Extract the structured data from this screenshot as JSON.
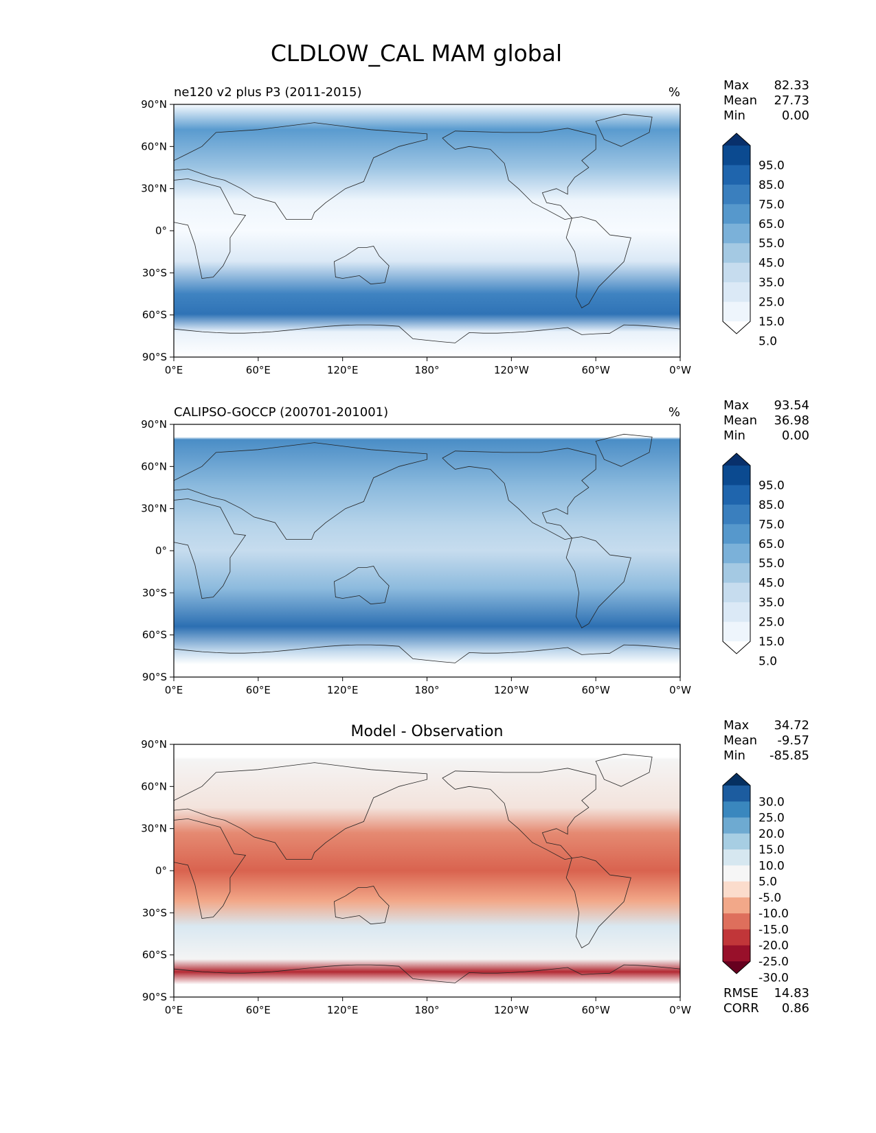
{
  "title": "CLDLOW_CAL MAM global",
  "panels": [
    {
      "title_left": "ne120 v2 plus P3 (2011-2015)",
      "title_center": "",
      "units": "%",
      "stats": [
        {
          "label": "Max",
          "value": "82.33"
        },
        {
          "label": "Mean",
          "value": "27.73"
        },
        {
          "label": "Min",
          "value": "0.00"
        }
      ],
      "colorbar": {
        "labels": [
          "95.0",
          "85.0",
          "75.0",
          "65.0",
          "55.0",
          "45.0",
          "35.0",
          "25.0",
          "15.0",
          "5.0"
        ],
        "colors": [
          "#08306b",
          "#0b4a90",
          "#1f65ad",
          "#3a7fbe",
          "#5698cc",
          "#7bb1d9",
          "#a4c9e3",
          "#c6dcee",
          "#dbe9f6",
          "#eef5fc",
          "#ffffff"
        ]
      },
      "extra_stats": []
    },
    {
      "title_left": "CALIPSO-GOCCP (200701-201001)",
      "title_center": "",
      "units": "%",
      "stats": [
        {
          "label": "Max",
          "value": "93.54"
        },
        {
          "label": "Mean",
          "value": "36.98"
        },
        {
          "label": "Min",
          "value": "0.00"
        }
      ],
      "colorbar": {
        "labels": [
          "95.0",
          "85.0",
          "75.0",
          "65.0",
          "55.0",
          "45.0",
          "35.0",
          "25.0",
          "15.0",
          "5.0"
        ],
        "colors": [
          "#08306b",
          "#0b4a90",
          "#1f65ad",
          "#3a7fbe",
          "#5698cc",
          "#7bb1d9",
          "#a4c9e3",
          "#c6dcee",
          "#dbe9f6",
          "#eef5fc",
          "#ffffff"
        ]
      },
      "extra_stats": []
    },
    {
      "title_left": "",
      "title_center": "Model - Observation",
      "units": "",
      "stats": [
        {
          "label": "Max",
          "value": "34.72"
        },
        {
          "label": "Mean",
          "value": "-9.57"
        },
        {
          "label": "Min",
          "value": "-85.85"
        }
      ],
      "colorbar": {
        "labels": [
          "30.0",
          "25.0",
          "20.0",
          "15.0",
          "10.0",
          "5.0",
          "-5.0",
          "-10.0",
          "-15.0",
          "-20.0",
          "-25.0",
          "-30.0"
        ],
        "colors": [
          "#053061",
          "#1c5c9f",
          "#3a87be",
          "#6eaad1",
          "#a7cee3",
          "#d6e7f0",
          "#f6f6f6",
          "#fbdccc",
          "#f2a889",
          "#de6f5c",
          "#c13639",
          "#98102a",
          "#67001f"
        ]
      },
      "extra_stats": [
        {
          "label": "RMSE",
          "value": "14.83"
        },
        {
          "label": "CORR",
          "value": "0.86"
        }
      ]
    }
  ],
  "axes": {
    "x_ticks": [
      "0°E",
      "60°E",
      "120°E",
      "180°",
      "120°W",
      "60°W",
      "0°W"
    ],
    "y_ticks": [
      "90°N",
      "60°N",
      "30°N",
      "0°",
      "30°S",
      "60°S",
      "90°S"
    ]
  },
  "chart_data": [
    {
      "type": "heatmap",
      "title": "ne120 v2 plus P3 (2011-2015)",
      "units": "%",
      "x_ticks": [
        "0°E",
        "60°E",
        "120°E",
        "180°",
        "120°W",
        "60°W",
        "0°W"
      ],
      "y_ticks": [
        "90°N",
        "60°N",
        "30°N",
        "0°",
        "30°S",
        "60°S",
        "90°S"
      ],
      "xlim": [
        0,
        360
      ],
      "ylim": [
        -90,
        90
      ],
      "levels": [
        5,
        15,
        25,
        35,
        45,
        55,
        65,
        75,
        85,
        95
      ],
      "stats": {
        "max": 82.33,
        "mean": 27.73,
        "min": 0.0
      },
      "colormap": "Blues"
    },
    {
      "type": "heatmap",
      "title": "CALIPSO-GOCCP (200701-201001)",
      "units": "%",
      "x_ticks": [
        "0°E",
        "60°E",
        "120°E",
        "180°",
        "120°W",
        "60°W",
        "0°W"
      ],
      "y_ticks": [
        "90°N",
        "60°N",
        "30°N",
        "0°",
        "30°S",
        "60°S",
        "90°S"
      ],
      "xlim": [
        0,
        360
      ],
      "ylim": [
        -90,
        90
      ],
      "levels": [
        5,
        15,
        25,
        35,
        45,
        55,
        65,
        75,
        85,
        95
      ],
      "stats": {
        "max": 93.54,
        "mean": 36.98,
        "min": 0.0
      },
      "colormap": "Blues"
    },
    {
      "type": "heatmap",
      "title": "Model - Observation",
      "x_ticks": [
        "0°E",
        "60°E",
        "120°E",
        "180°",
        "120°W",
        "60°W",
        "0°W"
      ],
      "y_ticks": [
        "90°N",
        "60°N",
        "30°N",
        "0°",
        "30°S",
        "60°S",
        "90°S"
      ],
      "xlim": [
        0,
        360
      ],
      "ylim": [
        -90,
        90
      ],
      "levels": [
        -30,
        -25,
        -20,
        -15,
        -10,
        -5,
        5,
        10,
        15,
        20,
        25,
        30
      ],
      "stats": {
        "max": 34.72,
        "mean": -9.57,
        "min": -85.85,
        "rmse": 14.83,
        "corr": 0.86
      },
      "colormap": "RdBu"
    }
  ]
}
